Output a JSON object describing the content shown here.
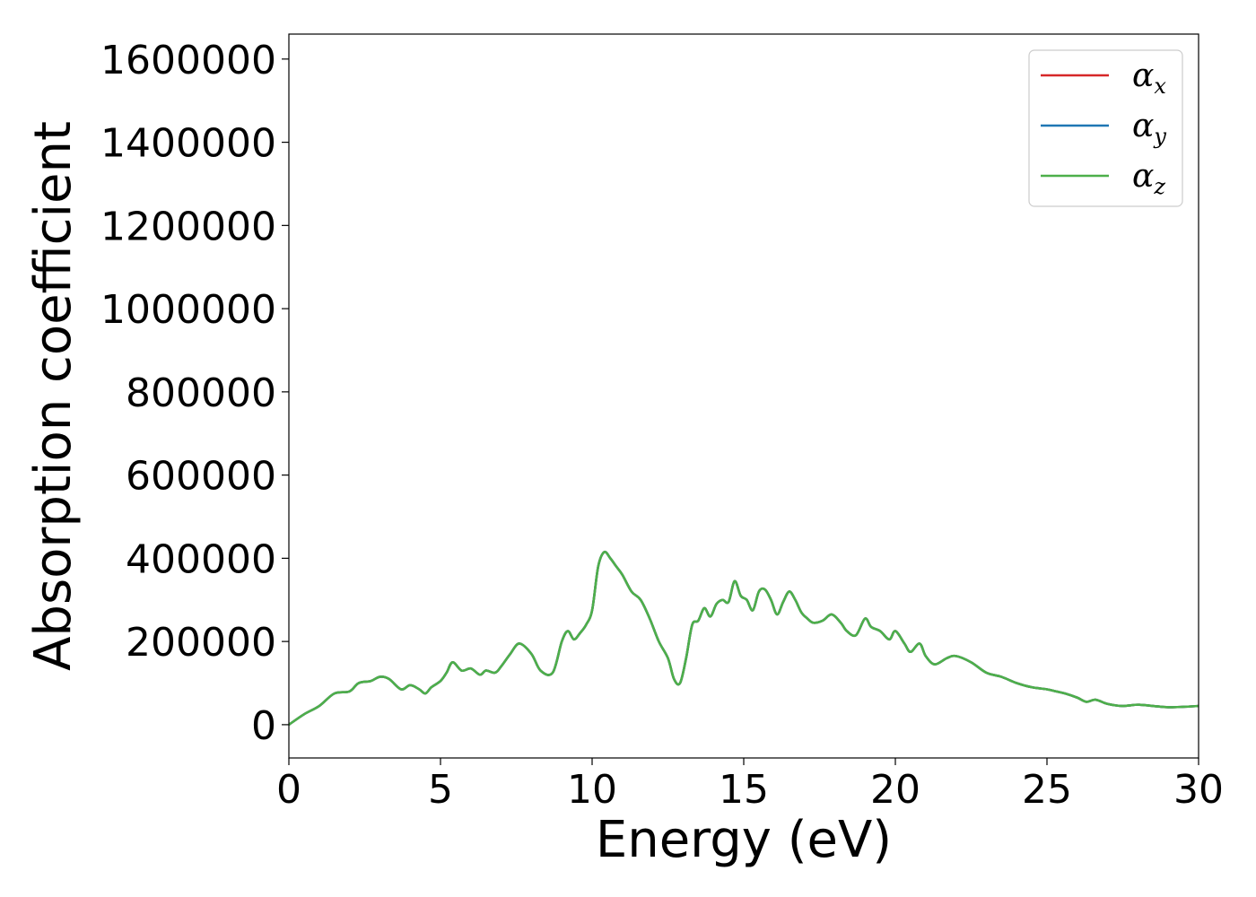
{
  "chart_data": {
    "type": "line",
    "xlabel": "Energy (eV)",
    "ylabel": "Absorption coefficient",
    "xlim": [
      0,
      30
    ],
    "ylim": [
      -80000,
      1660000
    ],
    "xticks": [
      0,
      5,
      10,
      15,
      20,
      25,
      30
    ],
    "yticks": [
      0,
      200000,
      400000,
      600000,
      800000,
      1000000,
      1200000,
      1400000,
      1600000
    ],
    "xtick_labels": [
      "0",
      "5",
      "10",
      "15",
      "20",
      "25",
      "30"
    ],
    "ytick_labels": [
      "0",
      "200000",
      "400000",
      "600000",
      "800000",
      "1000000",
      "1200000",
      "1400000",
      "1600000"
    ],
    "legend_placement": "top-right",
    "grid": false,
    "x": [
      0,
      0.5,
      1.0,
      1.5,
      2.0,
      2.3,
      2.7,
      3.0,
      3.3,
      3.7,
      4.0,
      4.3,
      4.5,
      4.7,
      5.0,
      5.2,
      5.4,
      5.7,
      6.0,
      6.3,
      6.5,
      6.8,
      7.0,
      7.3,
      7.6,
      8.0,
      8.3,
      8.7,
      9.0,
      9.2,
      9.4,
      9.6,
      9.8,
      10.0,
      10.2,
      10.4,
      10.6,
      10.8,
      11.0,
      11.3,
      11.6,
      11.9,
      12.2,
      12.5,
      12.7,
      12.9,
      13.1,
      13.3,
      13.5,
      13.7,
      13.9,
      14.1,
      14.3,
      14.5,
      14.7,
      14.9,
      15.1,
      15.3,
      15.5,
      15.7,
      15.9,
      16.1,
      16.3,
      16.5,
      16.7,
      16.9,
      17.1,
      17.3,
      17.6,
      17.9,
      18.2,
      18.4,
      18.7,
      19.0,
      19.2,
      19.5,
      19.8,
      20.0,
      20.3,
      20.5,
      20.8,
      21.0,
      21.3,
      21.7,
      22.0,
      22.5,
      23.0,
      23.5,
      24.0,
      24.5,
      25.0,
      25.3,
      25.6,
      26.0,
      26.3,
      26.6,
      27.0,
      27.5,
      28.0,
      28.5,
      29.0,
      29.5,
      30.0
    ],
    "series": [
      {
        "name": "αx",
        "color": "#d62728",
        "values": [
          0,
          25000,
          45000,
          75000,
          80000,
          100000,
          105000,
          115000,
          110000,
          85000,
          95000,
          85000,
          75000,
          90000,
          105000,
          125000,
          150000,
          130000,
          135000,
          120000,
          130000,
          125000,
          140000,
          170000,
          195000,
          170000,
          130000,
          125000,
          200000,
          225000,
          205000,
          220000,
          240000,
          275000,
          380000,
          415000,
          400000,
          380000,
          360000,
          320000,
          300000,
          255000,
          200000,
          160000,
          110000,
          100000,
          160000,
          240000,
          250000,
          280000,
          260000,
          290000,
          300000,
          295000,
          345000,
          310000,
          300000,
          275000,
          320000,
          325000,
          300000,
          265000,
          295000,
          320000,
          300000,
          270000,
          255000,
          245000,
          250000,
          265000,
          245000,
          225000,
          215000,
          255000,
          235000,
          225000,
          205000,
          225000,
          195000,
          175000,
          195000,
          165000,
          145000,
          160000,
          165000,
          150000,
          125000,
          115000,
          100000,
          90000,
          85000,
          80000,
          75000,
          65000,
          55000,
          60000,
          50000,
          45000,
          48000,
          45000,
          42000,
          43000,
          45000
        ]
      },
      {
        "name": "αy",
        "color": "#1f77b4",
        "values": [
          0,
          25000,
          45000,
          75000,
          80000,
          100000,
          105000,
          115000,
          110000,
          85000,
          95000,
          85000,
          75000,
          90000,
          105000,
          125000,
          150000,
          130000,
          135000,
          120000,
          130000,
          125000,
          140000,
          170000,
          195000,
          170000,
          130000,
          125000,
          200000,
          225000,
          205000,
          220000,
          240000,
          275000,
          380000,
          415000,
          400000,
          380000,
          360000,
          320000,
          300000,
          255000,
          200000,
          160000,
          110000,
          100000,
          160000,
          240000,
          250000,
          280000,
          260000,
          290000,
          300000,
          295000,
          345000,
          310000,
          300000,
          275000,
          320000,
          325000,
          300000,
          265000,
          295000,
          320000,
          300000,
          270000,
          255000,
          245000,
          250000,
          265000,
          245000,
          225000,
          215000,
          255000,
          235000,
          225000,
          205000,
          225000,
          195000,
          175000,
          195000,
          165000,
          145000,
          160000,
          165000,
          150000,
          125000,
          115000,
          100000,
          90000,
          85000,
          80000,
          75000,
          65000,
          55000,
          60000,
          50000,
          45000,
          48000,
          45000,
          42000,
          43000,
          45000
        ]
      },
      {
        "name": "αz",
        "color": "#4daf4a",
        "values": [
          0,
          25000,
          45000,
          75000,
          80000,
          100000,
          105000,
          115000,
          110000,
          85000,
          95000,
          85000,
          75000,
          90000,
          105000,
          125000,
          150000,
          130000,
          135000,
          120000,
          130000,
          125000,
          140000,
          170000,
          195000,
          170000,
          130000,
          125000,
          200000,
          225000,
          205000,
          220000,
          240000,
          275000,
          380000,
          415000,
          400000,
          380000,
          360000,
          320000,
          300000,
          255000,
          200000,
          160000,
          110000,
          100000,
          160000,
          240000,
          250000,
          280000,
          260000,
          290000,
          300000,
          295000,
          345000,
          310000,
          300000,
          275000,
          320000,
          325000,
          300000,
          265000,
          295000,
          320000,
          300000,
          270000,
          255000,
          245000,
          250000,
          265000,
          245000,
          225000,
          215000,
          255000,
          235000,
          225000,
          205000,
          225000,
          195000,
          175000,
          195000,
          165000,
          145000,
          160000,
          165000,
          150000,
          125000,
          115000,
          100000,
          90000,
          85000,
          80000,
          75000,
          65000,
          55000,
          60000,
          50000,
          45000,
          48000,
          45000,
          42000,
          43000,
          45000
        ]
      }
    ],
    "legend": [
      {
        "symbol": "α",
        "subscript": "x",
        "color": "#d62728"
      },
      {
        "symbol": "α",
        "subscript": "y",
        "color": "#1f77b4"
      },
      {
        "symbol": "α",
        "subscript": "z",
        "color": "#4daf4a"
      }
    ]
  }
}
